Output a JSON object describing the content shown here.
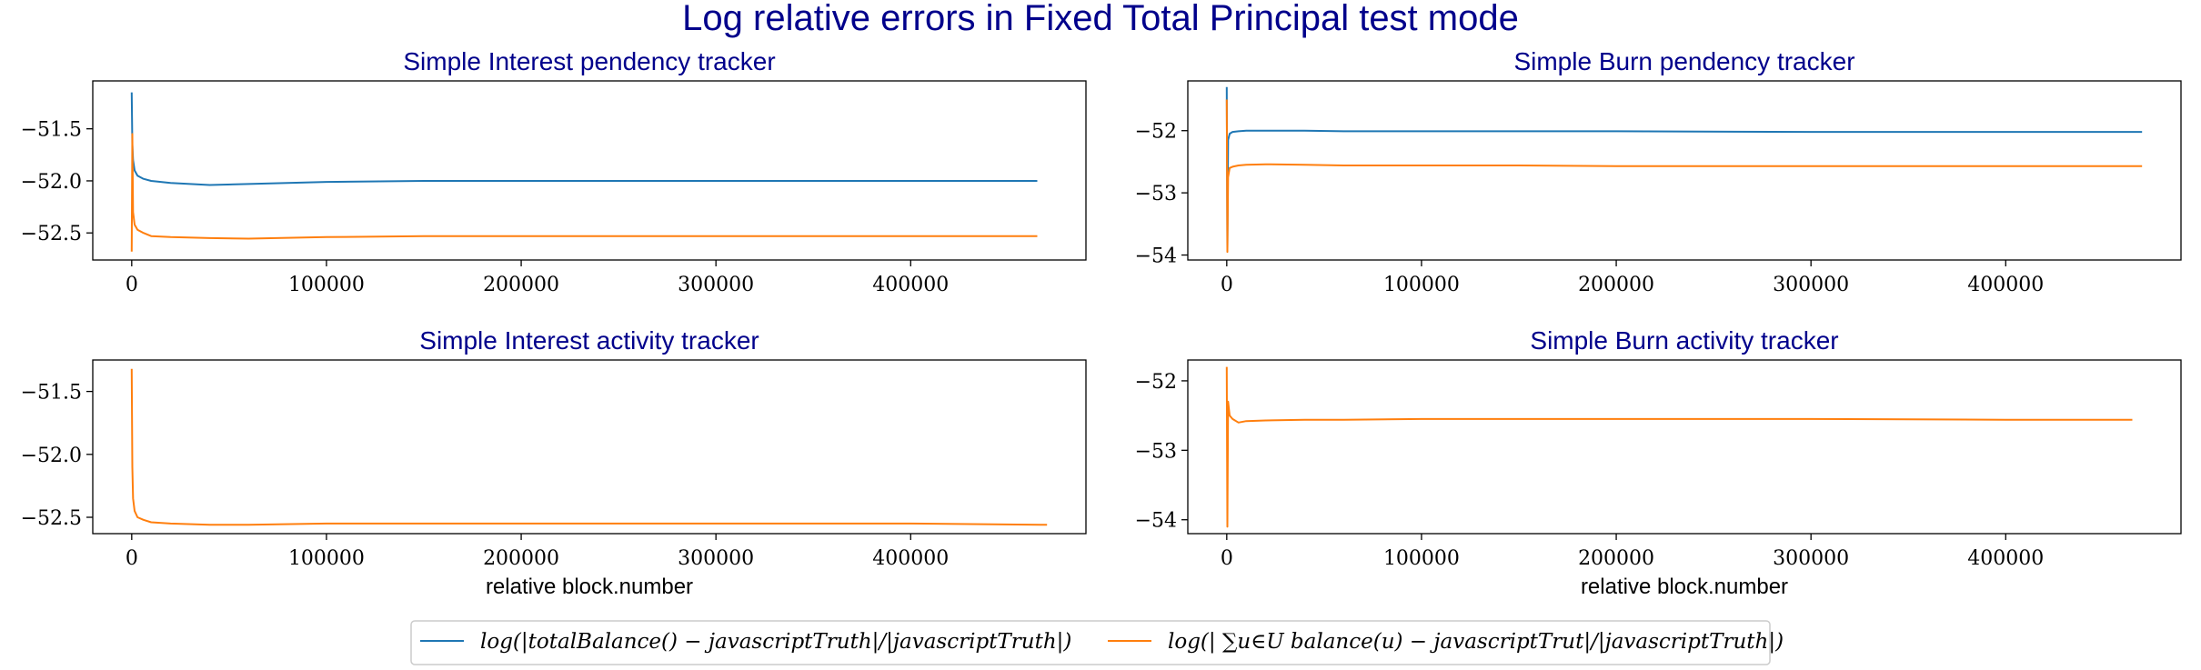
{
  "suptitle": "Log relative errors in Fixed Total Principal test mode",
  "colors": {
    "blue": "#1f77b4",
    "orange": "#ff7f0e",
    "title": "#00008b"
  },
  "legend": {
    "placement": "bottom-center",
    "entries": [
      {
        "series": "blue",
        "label": "log(|totalBalance() − javascriptTruth|/|javascriptTruth|)"
      },
      {
        "series": "orange",
        "label": "log(| ∑u∈U balance(u) − javascriptTrut|/|javascriptTruth|)"
      }
    ]
  },
  "chart_data": [
    {
      "type": "line",
      "title": "Simple Interest pendency tracker",
      "xlabel": "",
      "xlim": [
        -20000,
        490000
      ],
      "ylim": [
        -52.76,
        -51.04
      ],
      "xticks": [
        0,
        100000,
        200000,
        300000,
        400000
      ],
      "yticks": [
        -51.5,
        -52.0,
        -52.5
      ],
      "ytick_labels": [
        "−51.5",
        "−52.0",
        "−52.5"
      ],
      "series": [
        {
          "color": "blue",
          "x": [
            0,
            300,
            700,
            1500,
            3000,
            6000,
            10000,
            20000,
            40000,
            60000,
            100000,
            150000,
            200000,
            300000,
            400000,
            465000
          ],
          "y": [
            -51.15,
            -51.65,
            -51.8,
            -51.9,
            -51.95,
            -51.98,
            -52.0,
            -52.02,
            -52.04,
            -52.03,
            -52.01,
            -52.0,
            -52.0,
            -52.0,
            -52.0,
            -52.0
          ]
        },
        {
          "color": "orange",
          "x": [
            0,
            300,
            700,
            1500,
            3000,
            6000,
            10000,
            20000,
            40000,
            60000,
            100000,
            150000,
            200000,
            300000,
            400000,
            465000
          ],
          "y": [
            -52.68,
            -51.55,
            -52.3,
            -52.42,
            -52.47,
            -52.5,
            -52.53,
            -52.54,
            -52.55,
            -52.555,
            -52.54,
            -52.53,
            -52.53,
            -52.53,
            -52.53,
            -52.53
          ]
        }
      ]
    },
    {
      "type": "line",
      "title": "Simple Burn pendency tracker",
      "xlabel": "",
      "xlim": [
        -20000,
        490000
      ],
      "ylim": [
        -54.08,
        -51.2
      ],
      "xticks": [
        0,
        100000,
        200000,
        300000,
        400000
      ],
      "yticks": [
        -52,
        -53,
        -54
      ],
      "ytick_labels": [
        "−52",
        "−53",
        "−54"
      ],
      "series": [
        {
          "color": "blue",
          "x": [
            0,
            300,
            700,
            1500,
            3000,
            6000,
            10000,
            20000,
            40000,
            60000,
            100000,
            150000,
            200000,
            300000,
            400000,
            470000
          ],
          "y": [
            -51.3,
            -53.9,
            -52.15,
            -52.05,
            -52.02,
            -52.01,
            -52.0,
            -52.0,
            -52.0,
            -52.01,
            -52.01,
            -52.01,
            -52.01,
            -52.02,
            -52.02,
            -52.02
          ]
        },
        {
          "color": "orange",
          "x": [
            0,
            300,
            700,
            1500,
            3000,
            6000,
            10000,
            20000,
            40000,
            60000,
            100000,
            150000,
            200000,
            300000,
            400000,
            470000
          ],
          "y": [
            -51.5,
            -53.95,
            -52.75,
            -52.6,
            -52.58,
            -52.56,
            -52.55,
            -52.54,
            -52.55,
            -52.56,
            -52.56,
            -52.56,
            -52.57,
            -52.57,
            -52.57,
            -52.57
          ]
        }
      ]
    },
    {
      "type": "line",
      "title": "Simple Interest activity tracker",
      "xlabel": "relative block.number",
      "xlim": [
        -20000,
        490000
      ],
      "ylim": [
        -52.63,
        -51.25
      ],
      "xticks": [
        0,
        100000,
        200000,
        300000,
        400000
      ],
      "yticks": [
        -51.5,
        -52.0,
        -52.5
      ],
      "ytick_labels": [
        "−51.5",
        "−52.0",
        "−52.5"
      ],
      "series": [
        {
          "color": "orange",
          "x": [
            0,
            300,
            700,
            1500,
            3000,
            6000,
            10000,
            20000,
            40000,
            60000,
            100000,
            150000,
            200000,
            300000,
            400000,
            470000
          ],
          "y": [
            -51.32,
            -52.1,
            -52.35,
            -52.45,
            -52.5,
            -52.52,
            -52.54,
            -52.55,
            -52.56,
            -52.56,
            -52.55,
            -52.55,
            -52.55,
            -52.55,
            -52.55,
            -52.56
          ]
        }
      ]
    },
    {
      "type": "line",
      "title": "Simple Burn activity tracker",
      "xlabel": "relative block.number",
      "xlim": [
        -20000,
        490000
      ],
      "ylim": [
        -54.2,
        -51.7
      ],
      "xticks": [
        0,
        100000,
        200000,
        300000,
        400000
      ],
      "yticks": [
        -52,
        -53,
        -54
      ],
      "ytick_labels": [
        "−52",
        "−53",
        "−54"
      ],
      "series": [
        {
          "color": "orange",
          "x": [
            0,
            300,
            700,
            1500,
            3000,
            6000,
            10000,
            20000,
            40000,
            60000,
            100000,
            150000,
            200000,
            300000,
            400000,
            465000
          ],
          "y": [
            -51.8,
            -54.1,
            -52.3,
            -52.5,
            -52.55,
            -52.6,
            -52.58,
            -52.57,
            -52.56,
            -52.56,
            -52.55,
            -52.55,
            -52.55,
            -52.55,
            -52.56,
            -52.56
          ]
        }
      ]
    }
  ]
}
